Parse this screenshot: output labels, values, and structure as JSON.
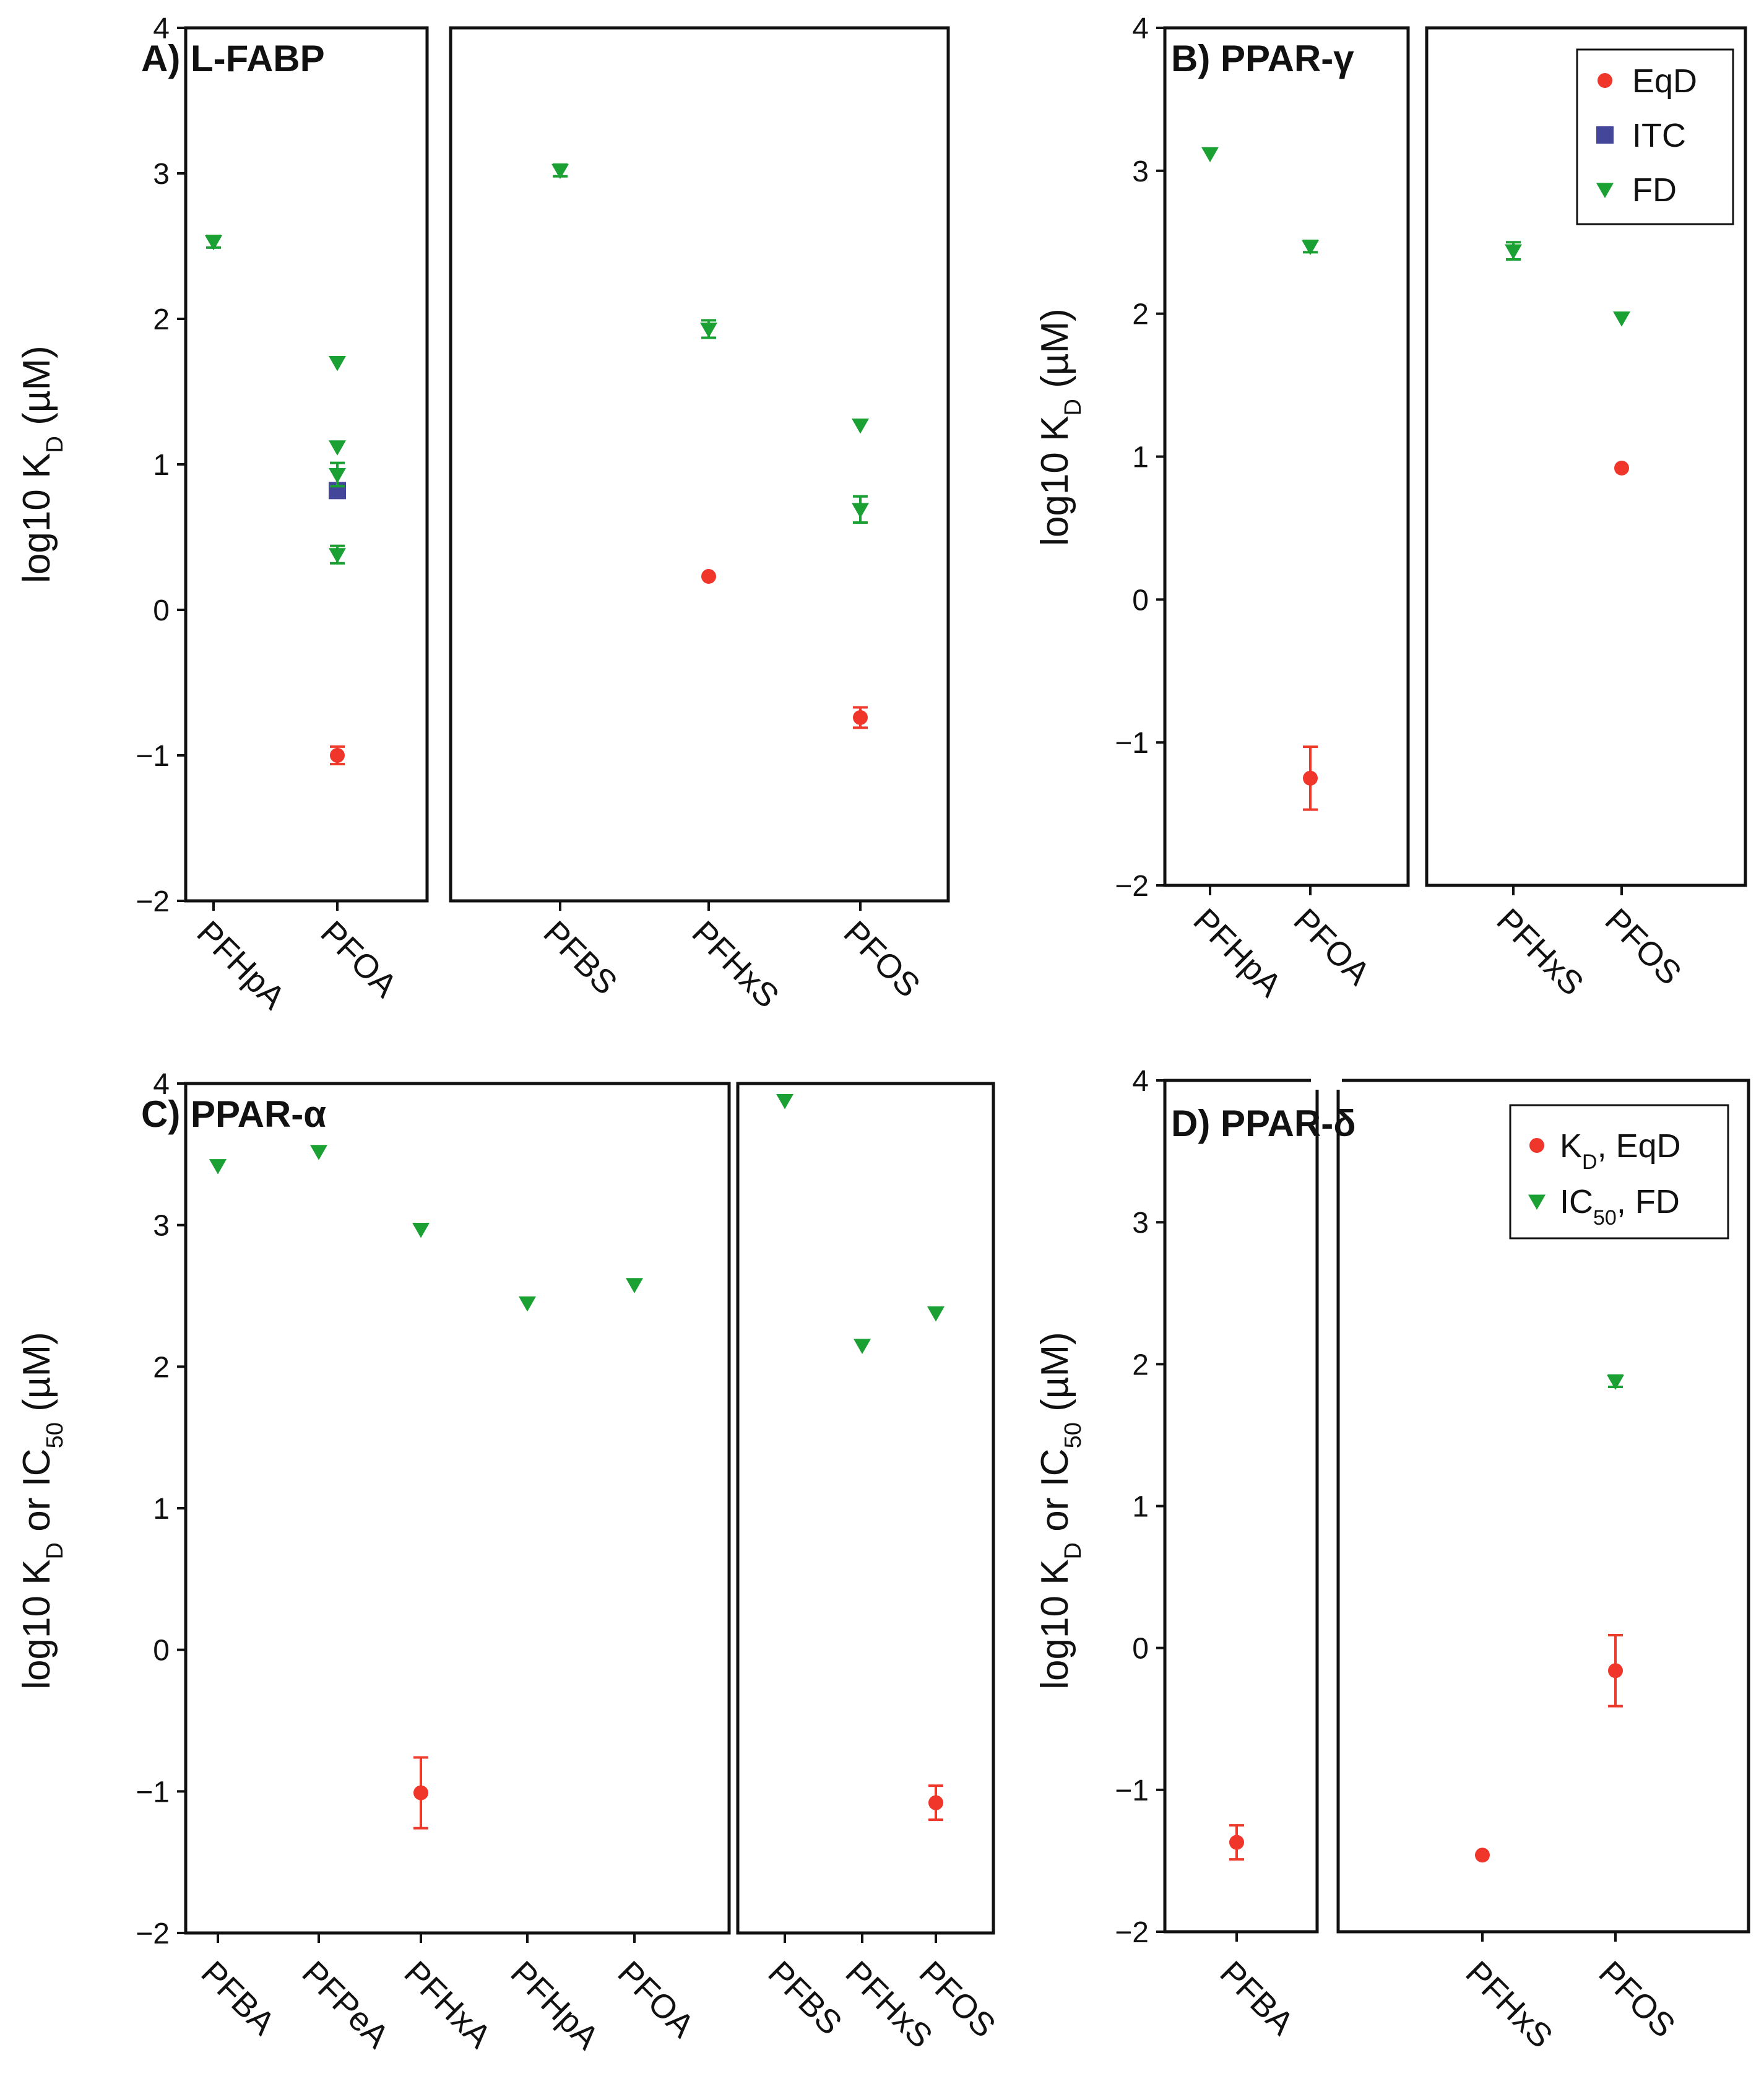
{
  "colors": {
    "eqd": "#f0352a",
    "itc": "#44469a",
    "fd": "#1aa033",
    "axis": "#111111"
  },
  "chart_data": [
    {
      "type": "scatter",
      "title": "A) L-FABP",
      "ylabel": "log10 K",
      "ylabel_sub": "D",
      "ylabel_tail": " (µM)",
      "ylim": [
        -2,
        4
      ],
      "yticks": [
        4,
        3,
        2,
        1,
        0,
        -1,
        -2
      ],
      "ytick_labels": [
        "4",
        "3",
        "2",
        "1",
        "0",
        "−1",
        "−2"
      ],
      "groups": [
        {
          "categories": [
            "PFHpA",
            "PFOA"
          ]
        },
        {
          "categories": [
            "PFBS",
            "PFHxS",
            "PFOS"
          ]
        }
      ],
      "series": [
        {
          "name": "EqD",
          "marker": "circle",
          "points": [
            {
              "category": "PFOA",
              "y": -1.0,
              "err": 0.06
            },
            {
              "category": "PFHxS",
              "y": 0.23,
              "err": 0
            },
            {
              "category": "PFOS",
              "y": -0.74,
              "err": 0.07
            }
          ]
        },
        {
          "name": "ITC",
          "marker": "square",
          "points": [
            {
              "category": "PFOA",
              "y": 0.82,
              "err": 0
            }
          ]
        },
        {
          "name": "FD",
          "marker": "triangle",
          "points": [
            {
              "category": "PFHpA",
              "y": 2.53,
              "err": 0.04
            },
            {
              "category": "PFOA",
              "y": 1.7,
              "err": 0
            },
            {
              "category": "PFOA",
              "y": 1.12,
              "err": 0
            },
            {
              "category": "PFOA",
              "y": 0.93,
              "err": 0.08
            },
            {
              "category": "PFOA",
              "y": 0.38,
              "err": 0.06
            },
            {
              "category": "PFBS",
              "y": 3.02,
              "err": 0.04
            },
            {
              "category": "PFHxS",
              "y": 1.93,
              "err": 0.06
            },
            {
              "category": "PFOS",
              "y": 1.27,
              "err": 0
            },
            {
              "category": "PFOS",
              "y": 0.69,
              "err": 0.09
            }
          ]
        }
      ]
    },
    {
      "type": "scatter",
      "title": "B) PPAR-γ",
      "ylabel": "log10 K",
      "ylabel_sub": "D",
      "ylabel_tail": " (µM)",
      "ylim": [
        -2,
        4
      ],
      "yticks": [
        4,
        3,
        2,
        1,
        0,
        -1,
        -2
      ],
      "ytick_labels": [
        "4",
        "3",
        "2",
        "1",
        "0",
        "−1",
        "−2"
      ],
      "groups": [
        {
          "categories": [
            "PFHpA",
            "PFOA"
          ]
        },
        {
          "categories": [
            "PFHxS",
            "PFOS"
          ]
        }
      ],
      "legend": {
        "position": "top-right",
        "entries": [
          {
            "marker": "circle",
            "color_key": "eqd",
            "label": "EqD",
            "sub": "",
            "tail": ""
          },
          {
            "marker": "square",
            "color_key": "itc",
            "label": "ITC",
            "sub": "",
            "tail": ""
          },
          {
            "marker": "triangle",
            "color_key": "fd",
            "label": "FD",
            "sub": "",
            "tail": ""
          }
        ]
      },
      "series": [
        {
          "name": "EqD",
          "marker": "circle",
          "points": [
            {
              "category": "PFOA",
              "y": -1.25,
              "err": 0.22
            },
            {
              "category": "PFOS",
              "y": 0.92,
              "err": 0
            }
          ]
        },
        {
          "name": "FD",
          "marker": "triangle",
          "points": [
            {
              "category": "PFHpA",
              "y": 3.12,
              "err": 0
            },
            {
              "category": "PFOA",
              "y": 2.47,
              "err": 0.04
            },
            {
              "category": "PFHxS",
              "y": 2.44,
              "err": 0.06
            },
            {
              "category": "PFOS",
              "y": 1.97,
              "err": 0
            }
          ]
        }
      ]
    },
    {
      "type": "scatter",
      "title": "C) PPAR-α",
      "ylabel": "log10 K",
      "ylabel_sub": "D",
      "ylabel_mid": " or IC",
      "ylabel_sub2": "50",
      "ylabel_tail": " (µM)",
      "ylim": [
        -2,
        4
      ],
      "yticks": [
        4,
        3,
        2,
        1,
        0,
        -1,
        -2
      ],
      "ytick_labels": [
        "4",
        "3",
        "2",
        "1",
        "0",
        "−1",
        "−2"
      ],
      "groups": [
        {
          "categories": [
            "PFBA",
            "PFPeA",
            "PFHxA",
            "PFHpA",
            "PFOA"
          ]
        },
        {
          "categories": [
            "PFBS",
            "PFHxS",
            "PFOS"
          ]
        }
      ],
      "series": [
        {
          "name": "EqD",
          "marker": "circle",
          "points": [
            {
              "category": "PFHxA",
              "y": -1.01,
              "err": 0.25
            },
            {
              "category": "PFOS",
              "y": -1.08,
              "err": 0.12
            }
          ]
        },
        {
          "name": "FD",
          "marker": "triangle",
          "points": [
            {
              "category": "PFBA",
              "y": 3.42,
              "err": 0
            },
            {
              "category": "PFPeA",
              "y": 3.52,
              "err": 0
            },
            {
              "category": "PFHxA",
              "y": 2.97,
              "err": 0
            },
            {
              "category": "PFHpA",
              "y": 2.45,
              "err": 0
            },
            {
              "category": "PFOA",
              "y": 2.58,
              "err": 0
            },
            {
              "category": "PFBS",
              "y": 3.88,
              "err": 0
            },
            {
              "category": "PFHxS",
              "y": 2.15,
              "err": 0
            },
            {
              "category": "PFOS",
              "y": 2.38,
              "err": 0
            }
          ]
        }
      ]
    },
    {
      "type": "scatter",
      "title": "D) PPAR-δ",
      "ylabel": "log10 K",
      "ylabel_sub": "D",
      "ylabel_mid": " or IC",
      "ylabel_sub2": "50",
      "ylabel_tail": " (µM)",
      "ylim": [
        -2,
        4
      ],
      "yticks": [
        4,
        3,
        2,
        1,
        0,
        -1,
        -2
      ],
      "ytick_labels": [
        "4",
        "3",
        "2",
        "1",
        "0",
        "−1",
        "−2"
      ],
      "groups": [
        {
          "categories": [
            "PFBA"
          ]
        },
        {
          "categories": [
            "PFHxS",
            "PFOS"
          ]
        }
      ],
      "legend": {
        "position": "top-right",
        "entries": [
          {
            "marker": "circle",
            "color_key": "eqd",
            "label": "K",
            "sub": "D",
            "tail": ", EqD"
          },
          {
            "marker": "triangle",
            "color_key": "fd",
            "label": "IC",
            "sub": "50",
            "tail": ", FD"
          }
        ]
      },
      "series": [
        {
          "name": "EqD",
          "marker": "circle",
          "points": [
            {
              "category": "PFBA",
              "y": -1.37,
              "err": 0.12
            },
            {
              "category": "PFHxS",
              "y": -1.46,
              "err": 0
            },
            {
              "category": "PFOS",
              "y": -0.16,
              "err": 0.25
            }
          ]
        },
        {
          "name": "FD",
          "marker": "triangle",
          "points": [
            {
              "category": "PFOS",
              "y": 1.88,
              "err": 0.04
            }
          ]
        }
      ]
    }
  ]
}
